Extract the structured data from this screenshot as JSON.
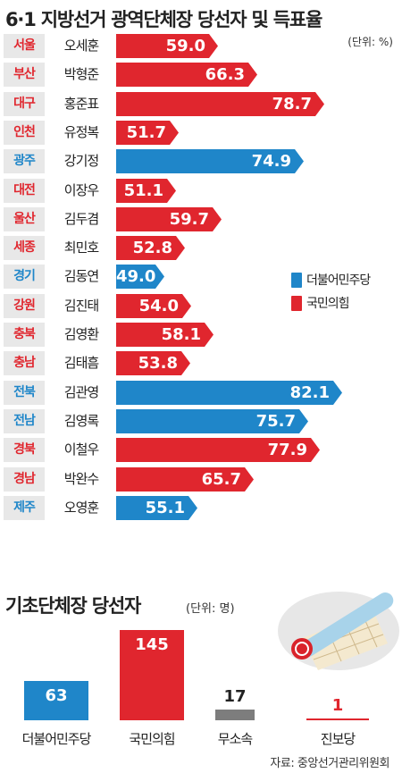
{
  "chart_data": [
    {
      "type": "bar",
      "orientation": "horizontal",
      "title": "6·1 지방선거 광역단체장 당선자 및 득표율",
      "unit": "(단위: %)",
      "categories": [
        "서울",
        "부산",
        "대구",
        "인천",
        "광주",
        "대전",
        "울산",
        "세종",
        "경기",
        "강원",
        "충북",
        "충남",
        "전북",
        "전남",
        "경북",
        "경남",
        "제주"
      ],
      "names": [
        "오세훈",
        "박형준",
        "홍준표",
        "유정복",
        "강기정",
        "이장우",
        "김두겸",
        "최민호",
        "김동연",
        "김진태",
        "김영환",
        "김태흠",
        "김관영",
        "김영록",
        "이철우",
        "박완수",
        "오영훈"
      ],
      "values": [
        59.0,
        66.3,
        78.7,
        51.7,
        74.9,
        51.1,
        59.7,
        52.8,
        49.0,
        54.0,
        58.1,
        53.8,
        82.1,
        75.7,
        77.9,
        65.7,
        55.1
      ],
      "value_labels": [
        "59.0",
        "66.3",
        "78.7",
        "51.7",
        "74.9",
        "51.1",
        "59.7",
        "52.8",
        "49.0",
        "54.0",
        "58.1",
        "53.8",
        "82.1",
        "75.7",
        "77.9",
        "65.7",
        "55.1"
      ],
      "parties": [
        "국민의힘",
        "국민의힘",
        "국민의힘",
        "국민의힘",
        "더불어민주당",
        "국민의힘",
        "국민의힘",
        "국민의힘",
        "더불어민주당",
        "국민의힘",
        "국민의힘",
        "국민의힘",
        "더불어민주당",
        "더불어민주당",
        "국민의힘",
        "국민의힘",
        "더불어민주당"
      ],
      "legend": [
        {
          "name": "더불어민주당",
          "color": "#1f86c9"
        },
        {
          "name": "국민의힘",
          "color": "#e0262e"
        }
      ],
      "legend_position": "right"
    },
    {
      "type": "bar",
      "title": "기초단체장 당선자",
      "unit": "(단위: 명)",
      "categories": [
        "더불어민주당",
        "국민의힘",
        "무소속",
        "진보당"
      ],
      "values": [
        63,
        145,
        17,
        1
      ],
      "colors": [
        "#1f86c9",
        "#e0262e",
        "#7d7d7d",
        "#e0262e"
      ]
    }
  ],
  "source": "자료: 중앙선거관리위원회",
  "colors": {
    "democratic": "#1f86c9",
    "ppp": "#e0262e",
    "independent": "#7d7d7d",
    "region_bg": "#e8e8e8"
  }
}
